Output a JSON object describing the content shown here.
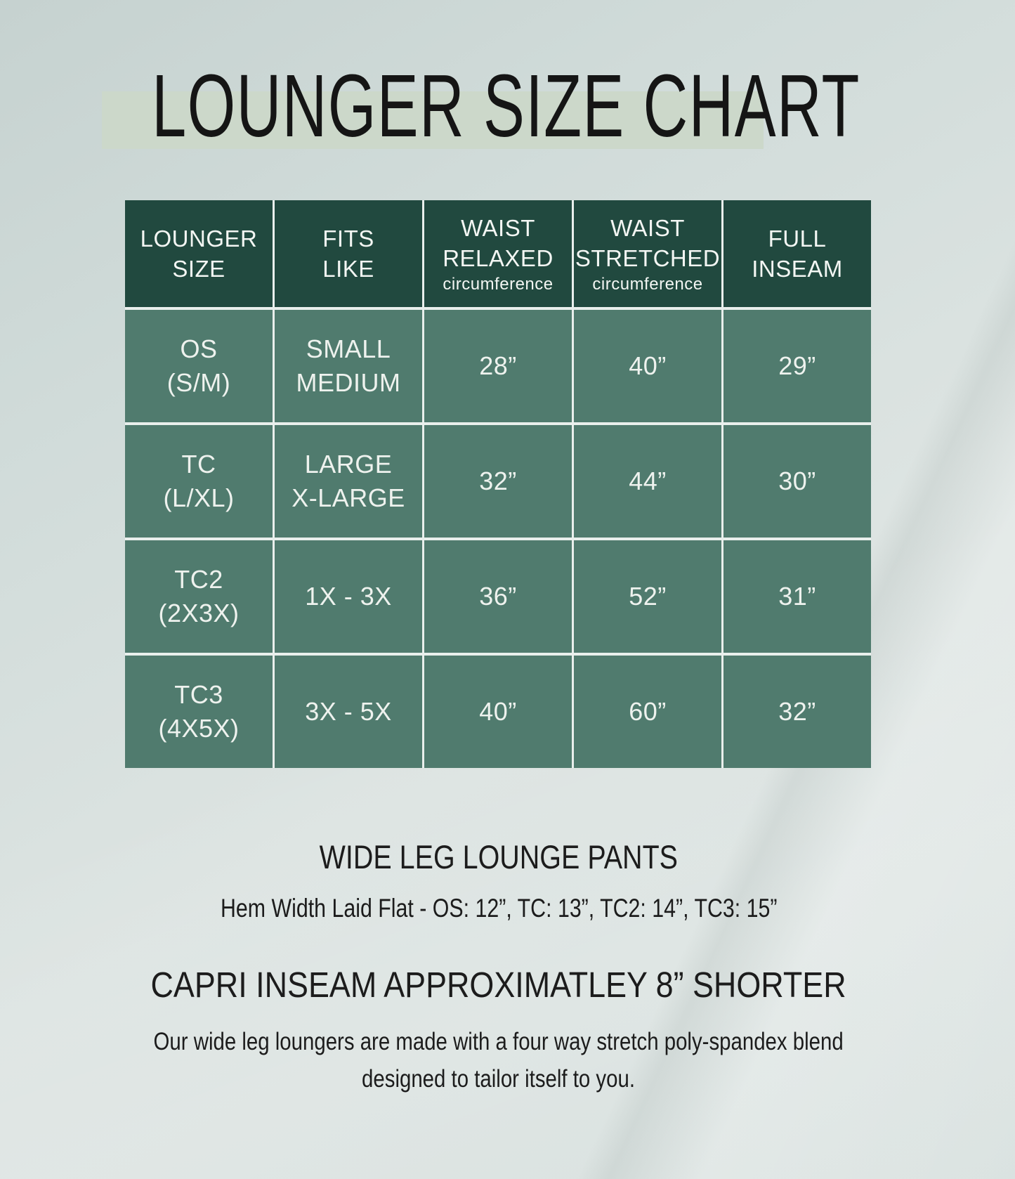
{
  "page": {
    "title": "LOUNGER SIZE CHART"
  },
  "table": {
    "header": [
      {
        "lines": [
          "LOUNGER",
          "SIZE"
        ]
      },
      {
        "lines": [
          "FITS",
          "LIKE"
        ]
      },
      {
        "lines": [
          "WAIST",
          "RELAXED"
        ],
        "sub": "circumference"
      },
      {
        "lines": [
          "WAIST",
          "STRETCHED"
        ],
        "sub": "circumference"
      },
      {
        "lines": [
          "FULL",
          "INSEAM"
        ]
      }
    ],
    "rows": [
      {
        "cells": [
          [
            "OS",
            "(S/M)"
          ],
          [
            "SMALL",
            "MEDIUM"
          ],
          [
            "28”"
          ],
          [
            "40”"
          ],
          [
            "29”"
          ]
        ]
      },
      {
        "cells": [
          [
            "TC",
            "(L/XL)"
          ],
          [
            "LARGE",
            "X-LARGE"
          ],
          [
            "32”"
          ],
          [
            "44”"
          ],
          [
            "30”"
          ]
        ]
      },
      {
        "cells": [
          [
            "TC2",
            "(2X3X)"
          ],
          [
            "1X - 3X"
          ],
          [
            "36”"
          ],
          [
            "52”"
          ],
          [
            "31”"
          ]
        ]
      },
      {
        "cells": [
          [
            "TC3",
            "(4X5X)"
          ],
          [
            "3X - 5X"
          ],
          [
            "40”"
          ],
          [
            "60”"
          ],
          [
            "32”"
          ]
        ]
      }
    ]
  },
  "notes": {
    "subtitle": "WIDE LEG LOUNGE PANTS",
    "hem_note": "Hem Width Laid Flat - OS: 12”, TC: 13”, TC2: 14”, TC3: 15”",
    "capri_note": "CAPRI INSEAM APPROXIMATLEY 8” SHORTER",
    "description_lines": [
      "Our wide leg loungers are made with a four way stretch poly-spandex blend",
      "designed to tailor itself to you."
    ]
  },
  "colors": {
    "header_green": "#21493f",
    "cell_green": "#507b6e",
    "cell_text": "#eef2ee",
    "table_gap": "#e9efec",
    "background": "#d5dfdd",
    "highlight_band": "#ccd8ca",
    "title_text": "#151515",
    "body_text": "#1c1c1c"
  },
  "chart_data": {
    "type": "table",
    "title": "LOUNGER SIZE CHART",
    "columns": [
      "LOUNGER SIZE",
      "FITS LIKE",
      "WAIST RELAXED (circumference)",
      "WAIST STRETCHED (circumference)",
      "FULL INSEAM"
    ],
    "rows": [
      [
        "OS (S/M)",
        "SMALL MEDIUM",
        "28”",
        "40”",
        "29”"
      ],
      [
        "TC (L/XL)",
        "LARGE X-LARGE",
        "32”",
        "44”",
        "30”"
      ],
      [
        "TC2 (2X3X)",
        "1X - 3X",
        "36”",
        "52”",
        "31”"
      ],
      [
        "TC3 (4X5X)",
        "3X - 5X",
        "40”",
        "60”",
        "32”"
      ]
    ],
    "annotations": [
      "WIDE LEG LOUNGE PANTS",
      "Hem Width Laid Flat - OS: 12”, TC: 13”, TC2: 14”, TC3: 15”",
      "CAPRI INSEAM APPROXIMATLEY 8” SHORTER",
      "Our wide leg loungers are made with a four way stretch poly-spandex blend designed to tailor itself to you."
    ],
    "layout": {
      "header_bg": "#21493f",
      "row_bg": "#507b6e",
      "grid": "on"
    }
  }
}
